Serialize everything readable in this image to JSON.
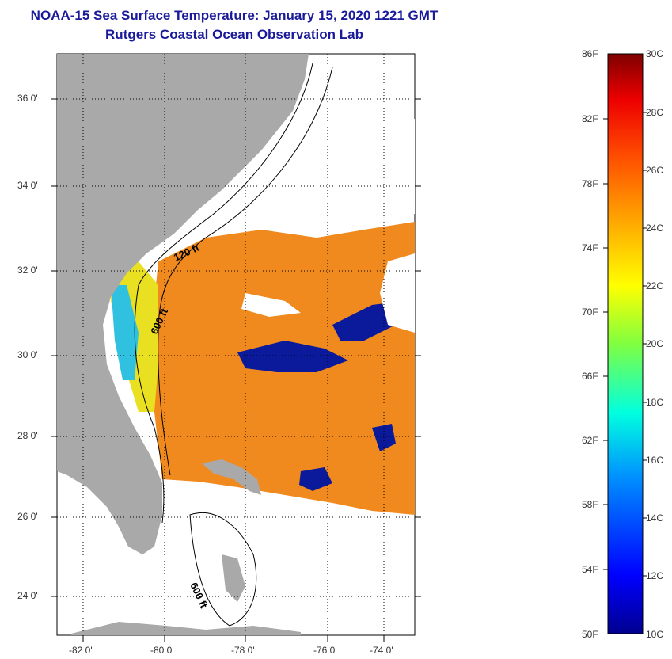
{
  "title": {
    "line1": "NOAA-15 Sea Surface Temperature:  January 15, 2020 1221 GMT",
    "line2": "Rutgers Coastal Ocean Observation Lab"
  },
  "map": {
    "lat_labels": [
      "36 0'",
      "34 0'",
      "32 0'",
      "30 0'",
      "28 0'",
      "26 0'",
      "24 0'"
    ],
    "lon_labels": [
      "-82 0'",
      "-80 0'",
      "-78 0'",
      "-76 0'",
      "-74 0'"
    ],
    "contour_labels": [
      "120 ft",
      "600 ft",
      "600 ft"
    ],
    "colors": {
      "land": "#a9a9a9",
      "cloud": "#ffffff",
      "warm": "#f08a1e",
      "cold": "#0a1a9a"
    }
  },
  "colorbar": {
    "fahrenheit": [
      "86F",
      "82F",
      "78F",
      "74F",
      "70F",
      "66F",
      "62F",
      "58F",
      "54F",
      "50F"
    ],
    "celsius": [
      "30C",
      "28C",
      "26C",
      "24C",
      "22C",
      "20C",
      "18C",
      "16C",
      "14C",
      "12C",
      "10C"
    ],
    "colormap": [
      "#00008f",
      "#0000ff",
      "#00b0ff",
      "#00ffd0",
      "#a0ff00",
      "#ffff00",
      "#ffb000",
      "#ff6000",
      "#ff0000",
      "#7f0000"
    ]
  }
}
